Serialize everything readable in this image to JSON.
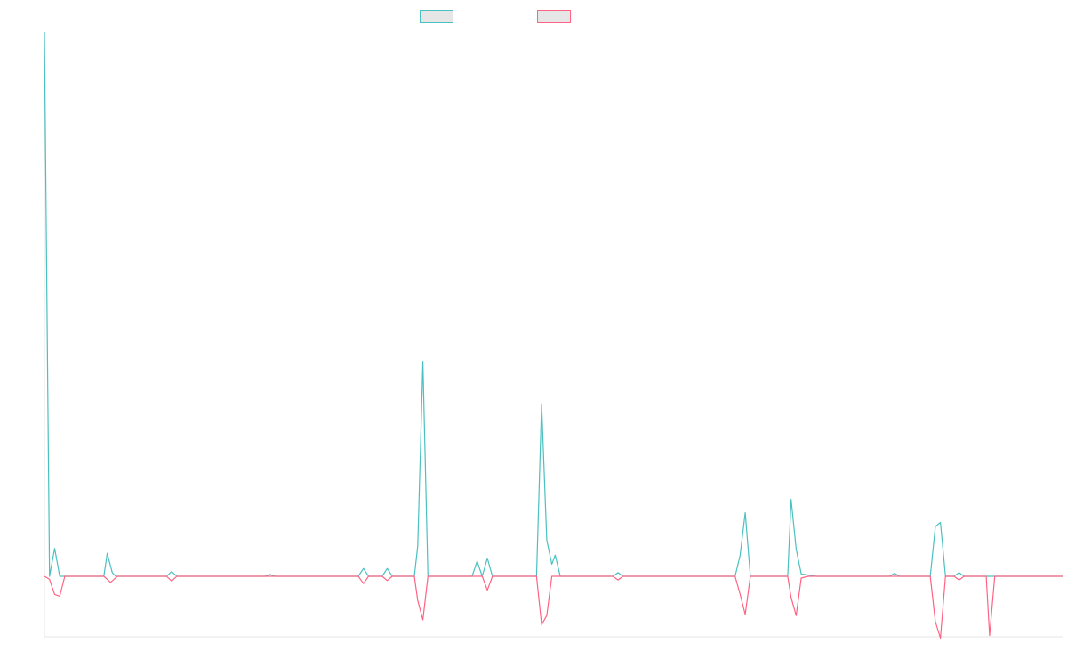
{
  "chart_data": {
    "type": "line",
    "title": "",
    "xlabel": "",
    "ylabel": "",
    "ylim": [
      -10,
      90
    ],
    "x": [
      1,
      20
    ],
    "grid": false,
    "legend_position": "top-center",
    "series": [
      {
        "name": "",
        "color": "#4bc0c0",
        "points": [
          [
            0.0,
            90
          ],
          [
            0.3,
            0
          ],
          [
            0.6,
            4.6
          ],
          [
            0.9,
            0
          ],
          [
            3.5,
            0
          ],
          [
            3.7,
            3.8
          ],
          [
            4.0,
            0.6
          ],
          [
            4.2,
            0
          ],
          [
            7.2,
            0
          ],
          [
            7.5,
            0.8
          ],
          [
            7.8,
            0
          ],
          [
            13.0,
            0
          ],
          [
            13.3,
            0.3
          ],
          [
            13.6,
            0
          ],
          [
            18.5,
            0
          ],
          [
            18.8,
            1.3
          ],
          [
            19.1,
            0
          ],
          [
            19.9,
            0
          ],
          [
            20.2,
            1.3
          ],
          [
            20.5,
            0
          ],
          [
            21.8,
            0
          ],
          [
            22.0,
            5
          ],
          [
            22.3,
            35.5
          ],
          [
            22.6,
            0
          ],
          [
            25.2,
            0
          ],
          [
            25.5,
            2.5
          ],
          [
            25.8,
            0
          ],
          [
            26.1,
            3
          ],
          [
            26.4,
            0
          ],
          [
            29.0,
            0
          ],
          [
            29.3,
            28.5
          ],
          [
            29.6,
            6
          ],
          [
            29.9,
            2
          ],
          [
            30.1,
            3.5
          ],
          [
            30.4,
            0
          ],
          [
            33.5,
            0
          ],
          [
            33.8,
            0.6
          ],
          [
            34.1,
            0
          ],
          [
            40.7,
            0
          ],
          [
            41.0,
            3.5
          ],
          [
            41.3,
            10.5
          ],
          [
            41.6,
            0
          ],
          [
            43.8,
            0
          ],
          [
            44.0,
            12.7
          ],
          [
            44.3,
            4.5
          ],
          [
            44.6,
            0.4
          ],
          [
            45.5,
            0
          ],
          [
            49.8,
            0
          ],
          [
            50.1,
            0.5
          ],
          [
            50.4,
            0
          ],
          [
            52.2,
            0
          ],
          [
            52.5,
            8.2
          ],
          [
            52.8,
            8.9
          ],
          [
            53.1,
            0
          ],
          [
            53.6,
            0
          ],
          [
            53.9,
            0.6
          ],
          [
            54.2,
            0
          ],
          [
            60,
            0
          ]
        ]
      },
      {
        "name": "",
        "color": "#ff6384",
        "points": [
          [
            0.0,
            0
          ],
          [
            0.3,
            -0.5
          ],
          [
            0.6,
            -3
          ],
          [
            0.9,
            -3.3
          ],
          [
            1.2,
            0
          ],
          [
            3.5,
            0
          ],
          [
            3.9,
            -1
          ],
          [
            4.3,
            0
          ],
          [
            7.2,
            0
          ],
          [
            7.5,
            -0.8
          ],
          [
            7.8,
            0
          ],
          [
            18.5,
            0
          ],
          [
            18.8,
            -1.2
          ],
          [
            19.1,
            0
          ],
          [
            19.9,
            0
          ],
          [
            20.2,
            -0.7
          ],
          [
            20.5,
            0
          ],
          [
            21.8,
            0
          ],
          [
            22.0,
            -4
          ],
          [
            22.3,
            -7.2
          ],
          [
            22.6,
            0
          ],
          [
            25.8,
            0
          ],
          [
            26.1,
            -2.3
          ],
          [
            26.4,
            0
          ],
          [
            29.0,
            0
          ],
          [
            29.3,
            -8
          ],
          [
            29.6,
            -6.5
          ],
          [
            29.9,
            0
          ],
          [
            33.5,
            0
          ],
          [
            33.8,
            -0.6
          ],
          [
            34.1,
            0
          ],
          [
            40.7,
            0
          ],
          [
            41.0,
            -3
          ],
          [
            41.3,
            -6.3
          ],
          [
            41.6,
            0
          ],
          [
            43.8,
            0
          ],
          [
            44.0,
            -3.5
          ],
          [
            44.3,
            -6.5
          ],
          [
            44.6,
            -0.3
          ],
          [
            45.0,
            0
          ],
          [
            52.2,
            0
          ],
          [
            52.5,
            -7.5
          ],
          [
            52.8,
            -10.2
          ],
          [
            53.1,
            0
          ],
          [
            53.6,
            0
          ],
          [
            53.9,
            -0.6
          ],
          [
            54.2,
            0
          ],
          [
            55.5,
            0
          ],
          [
            55.7,
            -9.8
          ],
          [
            56.0,
            0
          ],
          [
            60,
            0
          ]
        ]
      }
    ]
  }
}
